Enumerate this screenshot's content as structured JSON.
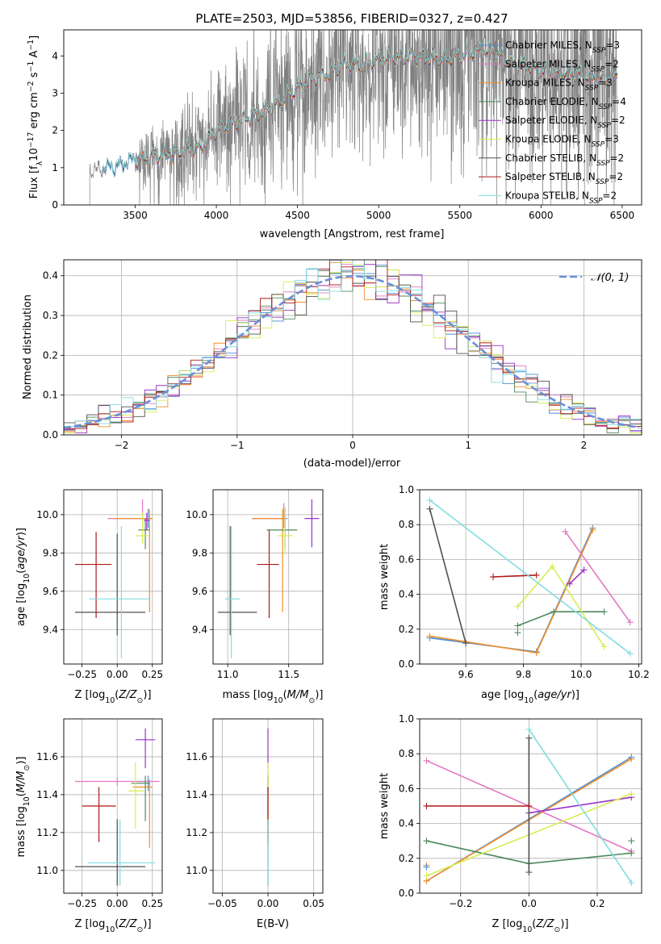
{
  "chart_data": [
    {
      "id": "spectrum",
      "type": "line",
      "title": "PLATE=2503, MJD=53856, FIBERID=0327, z=0.427",
      "xlabel": "wavelength [Angstrom, rest frame]",
      "ylabel": "Flux [f$_\\lambda$10$^{-17}$ erg cm$^{-2}$ s$^{-1}$ A$^{-1}$]",
      "ylabel_parts": [
        "Flux [f",
        "λ",
        "10",
        "−17",
        " erg cm",
        "−2",
        " s",
        "−1",
        " A",
        "−1",
        "]"
      ],
      "xlim": [
        3060,
        6620
      ],
      "ylim": [
        0,
        4.7
      ],
      "xticks": [
        3500,
        4000,
        4500,
        5000,
        5500,
        6000,
        6500
      ],
      "yticks": [
        0,
        1,
        2,
        3,
        4
      ],
      "grid": false,
      "legend_position": "top-right",
      "data_range_x": [
        3220,
        6470
      ],
      "data_range_models_x": [
        3500,
        6470
      ],
      "series": [
        {
          "name": "Chabrier MILES, N$_{SSP}$=3",
          "label": "Chabrier MILES",
          "nssp": "3",
          "color": "#4a8fd6"
        },
        {
          "name": "Salpeter MILES, N$_{SSP}$=2",
          "label": "Salpeter MILES",
          "nssp": "2",
          "color": "#e377c2"
        },
        {
          "name": "Kroupa MILES, N$_{SSP}$=3",
          "label": "Kroupa MILES",
          "nssp": "3",
          "color": "#f28e2b"
        },
        {
          "name": "Chabrier ELODIE, N$_{SSP}$=4",
          "label": "Chabrier ELODIE",
          "nssp": "4",
          "color": "#4e8a5c"
        },
        {
          "name": "Salpeter ELODIE, N$_{SSP}$=2",
          "label": "Salpeter ELODIE",
          "nssp": "2",
          "color": "#9b30c8"
        },
        {
          "name": "Kroupa ELODIE, N$_{SSP}$=3",
          "label": "Kroupa ELODIE",
          "nssp": "3",
          "color": "#d8ec54"
        },
        {
          "name": "Chabrier STELIB, N$_{SSP}$=2",
          "label": "Chabrier STELIB",
          "nssp": "2",
          "color": "#505050"
        },
        {
          "name": "Salpeter STELIB, N$_{SSP}$=2",
          "label": "Salpeter STELIB",
          "nssp": "2",
          "color": "#b01818"
        },
        {
          "name": "Kroupa STELIB, N$_{SSP}$=2",
          "label": "Kroupa STELIB",
          "nssp": "2",
          "color": "#80dde0"
        }
      ],
      "data_color": "#808080",
      "continuum": {
        "x": [
          3220,
          3300,
          3400,
          3500,
          3600,
          3700,
          3800,
          3900,
          4000,
          4100,
          4200,
          4300,
          4400,
          4500,
          4600,
          4700,
          4800,
          4900,
          5000,
          5100,
          5200,
          5300,
          5400,
          5500,
          5600,
          5700,
          5800,
          5900,
          6000,
          6100,
          6200,
          6300,
          6400,
          6470
        ],
        "y": [
          0.9,
          1.0,
          1.05,
          1.25,
          1.3,
          1.35,
          1.45,
          1.55,
          2.0,
          2.2,
          2.35,
          2.5,
          2.8,
          3.15,
          3.4,
          3.55,
          3.8,
          3.75,
          3.9,
          3.95,
          4.0,
          3.95,
          3.9,
          4.0,
          4.1,
          4.15,
          3.85,
          3.75,
          3.6,
          3.5,
          3.55,
          3.4,
          3.4,
          3.45
        ]
      }
    },
    {
      "id": "residuals",
      "type": "histogram",
      "xlabel": "(data-model)/error",
      "ylabel": "Normed distribution",
      "xlim": [
        -2.5,
        2.5
      ],
      "ylim": [
        0,
        0.44
      ],
      "xticks": [
        -2,
        -1,
        0,
        1,
        2
      ],
      "yticks": [
        0.0,
        0.1,
        0.2,
        0.3,
        0.4
      ],
      "grid": true,
      "legend_position": "top-right",
      "legend": "$\\mathcal{N}(0,1)$",
      "legend_text": "𝒩(0, 1)",
      "normal_curve": {
        "mean": 0,
        "sigma": 1,
        "color": "#6a8fd8"
      },
      "bin_width": 0.1
    },
    {
      "id": "Z-age",
      "type": "errorbar",
      "xlabel": "Z [log$_{10}$($Z/Z_\\odot$)]",
      "ylabel": "age  [log$_{10}$($age/yr$)]",
      "xlim": [
        -0.38,
        0.32
      ],
      "ylim": [
        9.22,
        10.13
      ],
      "xticks": [
        -0.25,
        0.0,
        0.25
      ],
      "yticks": [
        9.4,
        9.6,
        9.8,
        10.0
      ],
      "grid": true,
      "points": [
        {
          "x": 0.22,
          "y": 9.98,
          "xerr": [
            0.25,
            0.02
          ],
          "yerr": [
            0.05,
            0.05
          ],
          "color": "#4a8fd6"
        },
        {
          "x": 0.18,
          "y": 9.98,
          "xerr": [
            0.25,
            0.02
          ],
          "yerr": [
            0.05,
            0.1
          ],
          "color": "#e377c2"
        },
        {
          "x": 0.23,
          "y": 9.98,
          "xerr": [
            0.25,
            0.02
          ],
          "yerr": [
            0.49,
            0.05
          ],
          "color": "#f28e2b"
        },
        {
          "x": 0.2,
          "y": 9.92,
          "xerr": [
            0.05,
            0.03
          ],
          "yerr": [
            0.1,
            0.06
          ],
          "color": "#4e8a5c"
        },
        {
          "x": 0.21,
          "y": 9.97,
          "xerr": [
            0.02,
            0.02
          ],
          "yerr": [
            0.05,
            0.04
          ],
          "color": "#9b30c8"
        },
        {
          "x": 0.18,
          "y": 9.89,
          "xerr": [
            0.05,
            0.04
          ],
          "yerr": [
            0.04,
            0.12
          ],
          "color": "#d8ec54"
        },
        {
          "x": 0.0,
          "y": 9.49,
          "xerr": [
            0.3,
            0.2
          ],
          "yerr": [
            0.12,
            0.41
          ],
          "color": "#505050"
        },
        {
          "x": -0.15,
          "y": 9.74,
          "xerr": [
            0.15,
            0.11
          ],
          "yerr": [
            0.28,
            0.17
          ],
          "color": "#b01818"
        },
        {
          "x": 0.03,
          "y": 9.56,
          "xerr": [
            0.23,
            0.2
          ],
          "yerr": [
            0.31,
            0.38
          ],
          "color": "#80dde0"
        }
      ]
    },
    {
      "id": "mass-age",
      "type": "errorbar",
      "xlabel": "mass [log$_{10}$($M/M_\\odot$)]",
      "ylabel": "",
      "xlim": [
        10.88,
        11.78
      ],
      "ylim": [
        9.22,
        10.13
      ],
      "xticks": [
        11.0,
        11.5
      ],
      "yticks": [
        9.4,
        9.6,
        9.8,
        10.0
      ],
      "grid": true,
      "points": [
        {
          "x": 11.47,
          "y": 9.98,
          "xerr": [
            0.27,
            0.02
          ],
          "yerr": [
            0.05,
            0.05
          ],
          "color": "#4a8fd6"
        },
        {
          "x": 11.46,
          "y": 9.98,
          "xerr": [
            0.26,
            0.02
          ],
          "yerr": [
            0.05,
            0.08
          ],
          "color": "#e377c2"
        },
        {
          "x": 11.45,
          "y": 9.98,
          "xerr": [
            0.25,
            0.02
          ],
          "yerr": [
            0.49,
            0.05
          ],
          "color": "#f28e2b"
        },
        {
          "x": 11.47,
          "y": 9.92,
          "xerr": [
            0.15,
            0.1
          ],
          "yerr": [
            0.1,
            0.06
          ],
          "color": "#4e8a5c"
        },
        {
          "x": 11.69,
          "y": 9.98,
          "xerr": [
            0.06,
            0.06
          ],
          "yerr": [
            0.15,
            0.1
          ],
          "color": "#9b30c8"
        },
        {
          "x": 11.47,
          "y": 9.89,
          "xerr": [
            0.06,
            0.06
          ],
          "yerr": [
            0.1,
            0.15
          ],
          "color": "#d8ec54"
        },
        {
          "x": 11.02,
          "y": 9.49,
          "xerr": [
            0.1,
            0.22
          ],
          "yerr": [
            0.12,
            0.45
          ],
          "color": "#505050"
        },
        {
          "x": 11.34,
          "y": 9.74,
          "xerr": [
            0.1,
            0.08
          ],
          "yerr": [
            0.28,
            0.18
          ],
          "color": "#b01818"
        },
        {
          "x": 11.03,
          "y": 9.56,
          "xerr": [
            0.05,
            0.07
          ],
          "yerr": [
            0.31,
            0.38
          ],
          "color": "#80dde0"
        }
      ]
    },
    {
      "id": "age-weight",
      "type": "line",
      "xlabel": "age  [log$_{10}$($age/yr$)]",
      "ylabel": "mass weight",
      "xlim": [
        9.44,
        10.21
      ],
      "ylim": [
        0,
        1
      ],
      "xticks": [
        9.6,
        9.8,
        10.0,
        10.2
      ],
      "yticks": [
        0.0,
        0.2,
        0.4,
        0.6,
        0.8,
        1.0
      ],
      "grid": true,
      "series": [
        {
          "color": "#4a8fd6",
          "x": [
            9.475,
            9.845,
            10.04
          ],
          "y": [
            0.15,
            0.07,
            0.78
          ]
        },
        {
          "color": "#e377c2",
          "x": [
            9.945,
            10.17
          ],
          "y": [
            0.76,
            0.24
          ]
        },
        {
          "color": "#f28e2b",
          "x": [
            9.475,
            9.845,
            10.04
          ],
          "y": [
            0.16,
            0.065,
            0.77
          ]
        },
        {
          "color": "#4e8a5c",
          "x": [
            9.78,
            9.905,
            10.08
          ],
          "y": [
            0.22,
            0.3,
            0.3
          ]
        },
        {
          "color": "#9b30c8",
          "x": [
            9.96,
            10.01
          ],
          "y": [
            0.46,
            0.54
          ]
        },
        {
          "color": "#d8ec54",
          "x": [
            9.78,
            9.9,
            10.08
          ],
          "y": [
            0.33,
            0.56,
            0.1
          ]
        },
        {
          "color": "#505050",
          "x": [
            9.475,
            9.6
          ],
          "y": [
            0.89,
            0.12
          ]
        },
        {
          "color": "#b01818",
          "x": [
            9.695,
            9.845
          ],
          "y": [
            0.5,
            0.51
          ]
        },
        {
          "color": "#80dde0",
          "x": [
            9.475,
            10.17
          ],
          "y": [
            0.94,
            0.06
          ]
        }
      ],
      "extra_markers": [
        {
          "color": "#4e8a5c",
          "x": 9.78,
          "y": 0.18
        }
      ]
    },
    {
      "id": "Z-mass",
      "type": "errorbar",
      "xlabel": "Z [log$_{10}$($Z/Z_\\odot$)]",
      "ylabel": "mass [log$_{10}$($M/M_\\odot$)]",
      "xlim": [
        -0.38,
        0.32
      ],
      "ylim": [
        10.88,
        11.8
      ],
      "xticks": [
        -0.25,
        0.0,
        0.25
      ],
      "yticks": [
        11.0,
        11.2,
        11.4,
        11.6
      ],
      "grid": true,
      "points": [
        {
          "x": 0.22,
          "y": 11.47,
          "xerr": [
            0.08,
            0.02
          ],
          "yerr": [
            0.05,
            0.03
          ],
          "color": "#4a8fd6"
        },
        {
          "x": 0.0,
          "y": 11.47,
          "xerr": [
            0.3,
            0.3
          ],
          "yerr": [
            0.02,
            0.02
          ],
          "color": "#e377c2"
        },
        {
          "x": 0.23,
          "y": 11.44,
          "xerr": [
            0.12,
            0.02
          ],
          "yerr": [
            0.32,
            0.04
          ],
          "color": "#f28e2b"
        },
        {
          "x": 0.2,
          "y": 11.46,
          "xerr": [
            0.1,
            0.03
          ],
          "yerr": [
            0.2,
            0.04
          ],
          "color": "#4e8a5c"
        },
        {
          "x": 0.2,
          "y": 11.69,
          "xerr": [
            0.07,
            0.07
          ],
          "yerr": [
            0.15,
            0.06
          ],
          "color": "#9b30c8"
        },
        {
          "x": 0.13,
          "y": 11.42,
          "xerr": [
            0.05,
            0.06
          ],
          "yerr": [
            0.2,
            0.15
          ],
          "color": "#d8ec54"
        },
        {
          "x": 0.0,
          "y": 11.02,
          "xerr": [
            0.3,
            0.2
          ],
          "yerr": [
            0.1,
            0.25
          ],
          "color": "#505050"
        },
        {
          "x": -0.13,
          "y": 11.34,
          "xerr": [
            0.12,
            0.12
          ],
          "yerr": [
            0.19,
            0.1
          ],
          "color": "#b01818"
        },
        {
          "x": 0.02,
          "y": 11.04,
          "xerr": [
            0.23,
            0.25
          ],
          "yerr": [
            0.12,
            0.23
          ],
          "color": "#80dde0"
        }
      ]
    },
    {
      "id": "EBV-mass",
      "type": "errorbar",
      "xlabel": "E(B-V)",
      "ylabel": "",
      "xlim": [
        -0.06,
        0.06
      ],
      "ylim": [
        10.88,
        11.8
      ],
      "xticks": [
        -0.05,
        0.0,
        0.05
      ],
      "yticks": [
        11.0,
        11.2,
        11.4,
        11.6
      ],
      "grid": true,
      "points": [
        {
          "x": 0.0,
          "y": 11.47,
          "xerr": [
            0,
            0
          ],
          "yerr": [
            0.05,
            0.03
          ],
          "color": "#4a8fd6"
        },
        {
          "x": 0.0,
          "y": 11.47,
          "xerr": [
            0,
            0
          ],
          "yerr": [
            0.05,
            0.05
          ],
          "color": "#e377c2"
        },
        {
          "x": 0.0,
          "y": 11.44,
          "xerr": [
            0,
            0
          ],
          "yerr": [
            0.32,
            0.04
          ],
          "color": "#f28e2b"
        },
        {
          "x": 0.0,
          "y": 11.46,
          "xerr": [
            0,
            0
          ],
          "yerr": [
            0.2,
            0.04
          ],
          "color": "#4e8a5c"
        },
        {
          "x": 0.0,
          "y": 11.69,
          "xerr": [
            0,
            0
          ],
          "yerr": [
            0.15,
            0.06
          ],
          "color": "#9b30c8"
        },
        {
          "x": 0.0,
          "y": 11.42,
          "xerr": [
            0,
            0
          ],
          "yerr": [
            0.2,
            0.15
          ],
          "color": "#d8ec54"
        },
        {
          "x": 0.0,
          "y": 11.02,
          "xerr": [
            0,
            0
          ],
          "yerr": [
            0.1,
            0.25
          ],
          "color": "#505050"
        },
        {
          "x": 0.0,
          "y": 11.34,
          "xerr": [
            0,
            0
          ],
          "yerr": [
            0.19,
            0.1
          ],
          "color": "#b01818"
        },
        {
          "x": 0.0,
          "y": 11.04,
          "xerr": [
            0,
            0
          ],
          "yerr": [
            0.12,
            0.23
          ],
          "color": "#80dde0"
        }
      ]
    },
    {
      "id": "Z-weight",
      "type": "line",
      "xlabel": "Z [log$_{10}$($Z/Z_\\odot$)]",
      "ylabel": "mass weight",
      "xlim": [
        -0.32,
        0.33
      ],
      "ylim": [
        0,
        1
      ],
      "xticks": [
        -0.2,
        0.0,
        0.2
      ],
      "yticks": [
        0.0,
        0.2,
        0.4,
        0.6,
        0.8,
        1.0
      ],
      "grid": true,
      "series": [
        {
          "color": "#4a8fd6",
          "x": [
            -0.3,
            0.3
          ],
          "y": [
            0.07,
            0.78
          ]
        },
        {
          "color": "#e377c2",
          "x": [
            -0.3,
            0.3
          ],
          "y": [
            0.76,
            0.24
          ]
        },
        {
          "color": "#f28e2b",
          "x": [
            -0.3,
            0.3
          ],
          "y": [
            0.07,
            0.77
          ]
        },
        {
          "color": "#4e8a5c",
          "x": [
            -0.3,
            0.0,
            0.3
          ],
          "y": [
            0.3,
            0.17,
            0.23
          ]
        },
        {
          "color": "#9b30c8",
          "x": [
            0.0,
            0.3
          ],
          "y": [
            0.46,
            0.55
          ]
        },
        {
          "color": "#d8ec54",
          "x": [
            -0.3,
            0.3
          ],
          "y": [
            0.1,
            0.57
          ]
        },
        {
          "color": "#505050",
          "x": [
            0.0,
            0.0
          ],
          "y": [
            0.12,
            0.89
          ]
        },
        {
          "color": "#b01818",
          "x": [
            -0.3,
            0.0
          ],
          "y": [
            0.5,
            0.5
          ]
        },
        {
          "color": "#80dde0",
          "x": [
            0.0,
            0.3
          ],
          "y": [
            0.94,
            0.06
          ]
        }
      ],
      "extra_markers": [
        {
          "color": "#f28e2b",
          "x": -0.3,
          "y": 0.16
        },
        {
          "color": "#4a8fd6",
          "x": -0.3,
          "y": 0.15
        },
        {
          "color": "#4e8a5c",
          "x": 0.3,
          "y": 0.3
        }
      ]
    }
  ]
}
